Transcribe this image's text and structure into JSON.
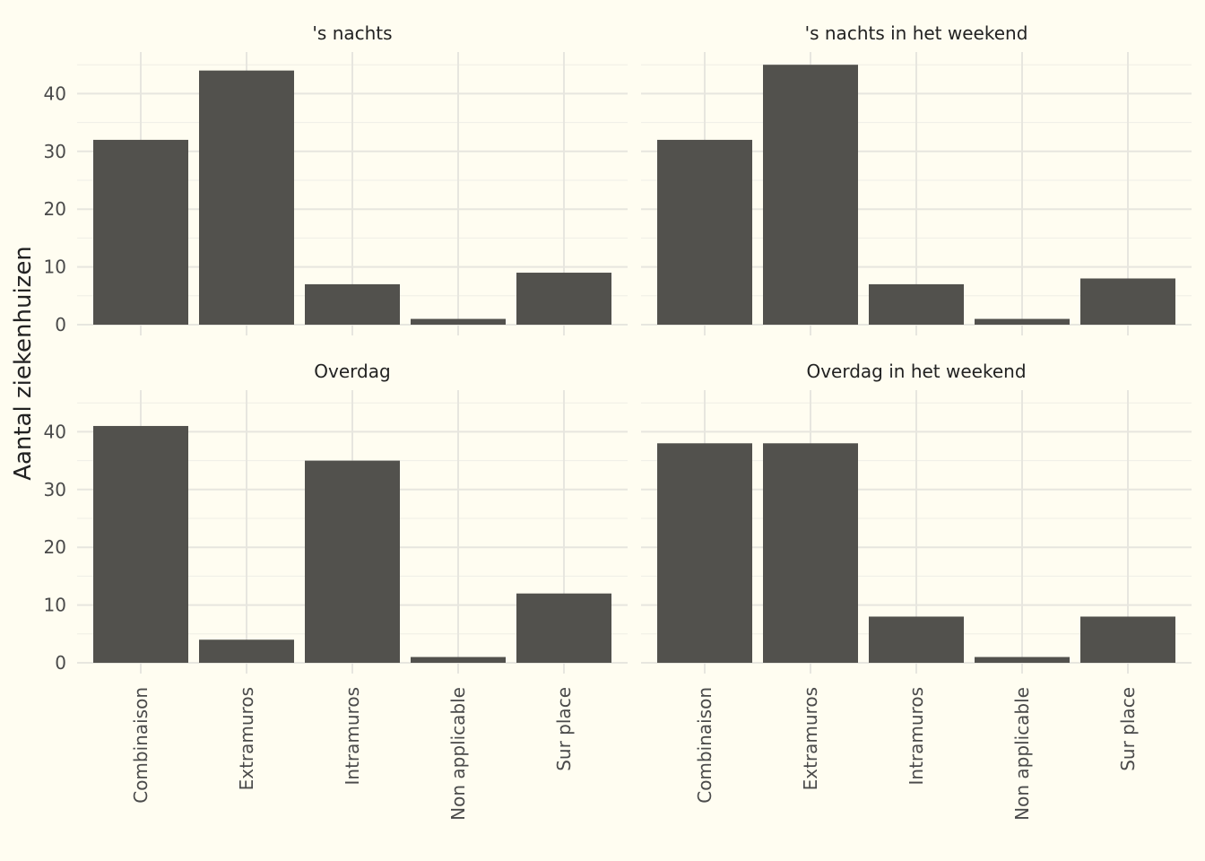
{
  "chart_data": {
    "type": "bar",
    "ylabel": "Aantal ziekenhuizen",
    "xlabel": "",
    "ylim": [
      0,
      47
    ],
    "yticks": [
      0,
      10,
      20,
      30,
      40
    ],
    "categories": [
      "Combinaison",
      "Extramuros",
      "Intramuros",
      "Non applicable",
      "Sur place"
    ],
    "bar_color": "#52514d",
    "background": "#fffdf1",
    "grid": true,
    "facets": [
      {
        "title": "'s nachts",
        "values": [
          32,
          44,
          7,
          1,
          9
        ]
      },
      {
        "title": "'s nachts in het weekend",
        "values": [
          32,
          45,
          7,
          1,
          8
        ]
      },
      {
        "title": "Overdag",
        "values": [
          41,
          4,
          35,
          1,
          12
        ]
      },
      {
        "title": "Overdag in het weekend",
        "values": [
          38,
          38,
          8,
          1,
          8
        ]
      }
    ]
  }
}
